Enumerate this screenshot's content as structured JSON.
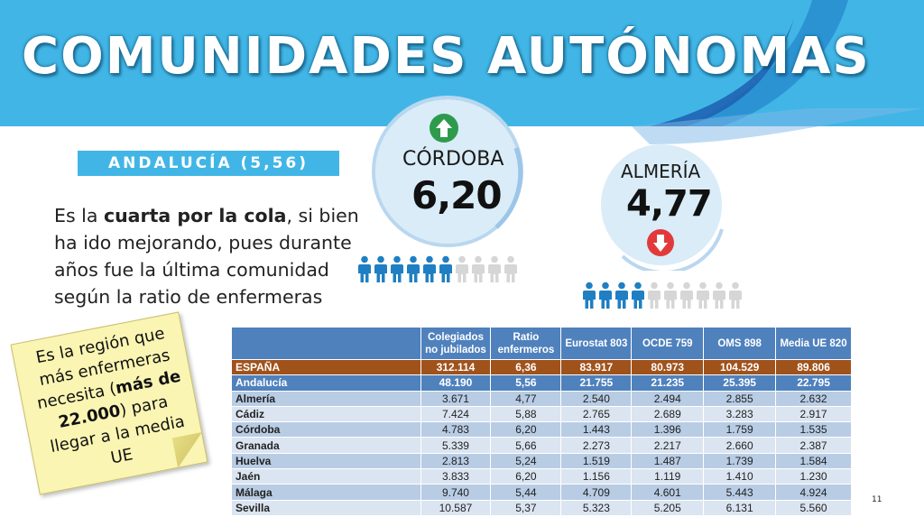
{
  "header": {
    "title": "COMUNIDADES AUTÓNOMAS"
  },
  "region_label": "ANDALUCÍA (5,56)",
  "paragraph": {
    "part1": "Es la ",
    "bold": "cuarta por la cola",
    "part2": ", si bien ha ido mejorando, pues durante años fue la última comunidad según la ratio de enfermeras"
  },
  "highlights": [
    {
      "name": "CÓRDOBA",
      "value": "6,20",
      "trend": "up",
      "people_filled": 6,
      "people_total": 10
    },
    {
      "name": "ALMERÍA",
      "value": "4,77",
      "trend": "down",
      "people_filled": 4,
      "people_total": 10
    }
  ],
  "sticky_note": {
    "t1": "Es la región que más enfermeras necesita (",
    "bold": "más de 22.000",
    "t2": ") para llegar a la media UE"
  },
  "table": {
    "headers": [
      "",
      "Colegiados no jubilados",
      "Ratio enfermeros",
      "Eurostat 803",
      "OCDE 759",
      "OMS 898",
      "Media UE 820"
    ],
    "rows": [
      {
        "style": "spain",
        "cells": [
          "ESPAÑA",
          "312.114",
          "6,36",
          "83.917",
          "80.973",
          "104.529",
          "89.806"
        ]
      },
      {
        "style": "andal",
        "cells": [
          "Andalucía",
          "48.190",
          "5,56",
          "21.755",
          "21.235",
          "25.395",
          "22.795"
        ]
      },
      {
        "style": "a",
        "cells": [
          "Almería",
          "3.671",
          "4,77",
          "2.540",
          "2.494",
          "2.855",
          "2.632"
        ]
      },
      {
        "style": "b",
        "cells": [
          "Cádiz",
          "7.424",
          "5,88",
          "2.765",
          "2.689",
          "3.283",
          "2.917"
        ]
      },
      {
        "style": "a",
        "cells": [
          "Córdoba",
          "4.783",
          "6,20",
          "1.443",
          "1.396",
          "1.759",
          "1.535"
        ]
      },
      {
        "style": "b",
        "cells": [
          "Granada",
          "5.339",
          "5,66",
          "2.273",
          "2.217",
          "2.660",
          "2.387"
        ]
      },
      {
        "style": "a",
        "cells": [
          "Huelva",
          "2.813",
          "5,24",
          "1.519",
          "1.487",
          "1.739",
          "1.584"
        ]
      },
      {
        "style": "b",
        "cells": [
          "Jaén",
          "3.833",
          "6,20",
          "1.156",
          "1.119",
          "1.410",
          "1.230"
        ]
      },
      {
        "style": "a",
        "cells": [
          "Málaga",
          "9.740",
          "5,44",
          "4.709",
          "4.601",
          "5.443",
          "4.924"
        ]
      },
      {
        "style": "b",
        "cells": [
          "Sevilla",
          "10.587",
          "5,37",
          "5.323",
          "5.205",
          "6.131",
          "5.560"
        ]
      }
    ]
  },
  "page_number": "11",
  "colors": {
    "header": "#41b6e6",
    "person_filled": "#1f7fc2",
    "person_empty": "#d6d6d6",
    "up": "#2e9b4c",
    "down": "#e23a3a"
  }
}
